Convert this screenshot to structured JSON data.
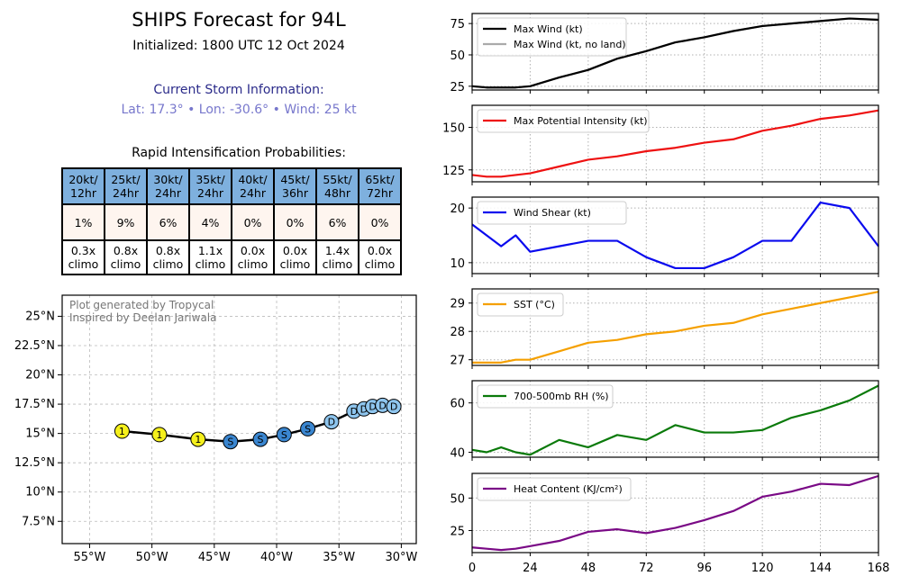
{
  "header": {
    "title": "SHIPS Forecast for 94L",
    "initialized": "Initialized: 1800 UTC 12 Oct 2024",
    "storm_heading": "Current Storm Information:",
    "storm_line": "Lat: 17.3°  • Lon: -30.6°  • Wind: 25 kt",
    "ri_heading": "Rapid Intensification Probabilities:"
  },
  "ri_table": {
    "thresholds": [
      [
        "20kt/",
        "12hr"
      ],
      [
        "25kt/",
        "24hr"
      ],
      [
        "30kt/",
        "24hr"
      ],
      [
        "35kt/",
        "24hr"
      ],
      [
        "40kt/",
        "24hr"
      ],
      [
        "45kt/",
        "36hr"
      ],
      [
        "55kt/",
        "48hr"
      ],
      [
        "65kt/",
        "72hr"
      ]
    ],
    "probabilities": [
      "1%",
      "9%",
      "6%",
      "4%",
      "0%",
      "0%",
      "6%",
      "0%"
    ],
    "climo": [
      [
        "0.3x",
        "climo"
      ],
      [
        "0.8x",
        "climo"
      ],
      [
        "0.8x",
        "climo"
      ],
      [
        "1.1x",
        "climo"
      ],
      [
        "0.0x",
        "climo"
      ],
      [
        "0.0x",
        "climo"
      ],
      [
        "1.4x",
        "climo"
      ],
      [
        "0.0x",
        "climo"
      ]
    ]
  },
  "map": {
    "credit_line1": "Plot generated by Tropycal",
    "credit_line2": "Inspired by Deelan Jariwala",
    "lat_ticks": [
      25,
      22.5,
      20,
      17.5,
      15,
      12.5,
      10,
      7.5
    ],
    "lat_tick_labels": [
      "25°N",
      "22.5°N",
      "20°N",
      "17.5°N",
      "15°N",
      "12.5°N",
      "10°N",
      "7.5°N"
    ],
    "lon_ticks": [
      -55,
      -50,
      -45,
      -40,
      -35,
      -30
    ],
    "lon_tick_labels": [
      "55°W",
      "50°W",
      "45°W",
      "40°W",
      "35°W",
      "30°W"
    ],
    "lon_range": [
      -57.2,
      -28.8
    ],
    "lat_range": [
      5.6,
      26.8
    ],
    "track_color": "#000000",
    "category_colors": {
      "D": "#8ec5ee",
      "S": "#3a86d0",
      "1": "#f5f01c"
    },
    "track": [
      {
        "lon": -30.6,
        "lat": 17.3,
        "cat": "D"
      },
      {
        "lon": -31.5,
        "lat": 17.4,
        "cat": "D"
      },
      {
        "lon": -32.3,
        "lat": 17.3,
        "cat": "D"
      },
      {
        "lon": -33.0,
        "lat": 17.1,
        "cat": "D"
      },
      {
        "lon": -33.8,
        "lat": 16.9,
        "cat": "D"
      },
      {
        "lon": -35.6,
        "lat": 16.0,
        "cat": "D"
      },
      {
        "lon": -37.5,
        "lat": 15.4,
        "cat": "S"
      },
      {
        "lon": -39.4,
        "lat": 14.9,
        "cat": "S"
      },
      {
        "lon": -41.3,
        "lat": 14.5,
        "cat": "S"
      },
      {
        "lon": -43.7,
        "lat": 14.3,
        "cat": "S"
      },
      {
        "lon": -46.3,
        "lat": 14.5,
        "cat": "1"
      },
      {
        "lon": -49.4,
        "lat": 14.9,
        "cat": "1"
      },
      {
        "lon": -52.4,
        "lat": 15.2,
        "cat": "1"
      }
    ]
  },
  "chart_data": [
    {
      "type": "line",
      "x": [
        0,
        6,
        12,
        18,
        24,
        36,
        48,
        60,
        72,
        84,
        96,
        108,
        120,
        132,
        144,
        156,
        168
      ],
      "series": [
        {
          "name": "Max Wind (kt)",
          "color": "#000000",
          "values": [
            25,
            24,
            24,
            24,
            25,
            32,
            38,
            47,
            53,
            60,
            64,
            69,
            73,
            75,
            77,
            79,
            78
          ]
        },
        {
          "name": "Max Wind (kt, no land)",
          "color": "#aaaaaa",
          "values": [
            25,
            24,
            24,
            24,
            25,
            32,
            38,
            47,
            53,
            60,
            64,
            69,
            73,
            75,
            77,
            79,
            78
          ]
        }
      ],
      "ylim": [
        22,
        83
      ],
      "yticks": [
        25,
        50,
        75
      ],
      "xlim": [
        0,
        168
      ],
      "legend": "top-left",
      "grid": true
    },
    {
      "type": "line",
      "x": [
        0,
        6,
        12,
        18,
        24,
        36,
        48,
        60,
        72,
        84,
        96,
        108,
        120,
        132,
        144,
        156,
        168
      ],
      "series": [
        {
          "name": "Max Potential Intensity (kt)",
          "color": "#ee1111",
          "values": [
            122,
            121,
            121,
            122,
            123,
            127,
            131,
            133,
            136,
            138,
            141,
            143,
            148,
            151,
            155,
            157,
            160
          ]
        }
      ],
      "ylim": [
        118,
        163
      ],
      "yticks": [
        125,
        150
      ],
      "xlim": [
        0,
        168
      ],
      "legend": "top-left",
      "grid": true
    },
    {
      "type": "line",
      "x": [
        0,
        6,
        12,
        18,
        24,
        36,
        48,
        60,
        72,
        84,
        96,
        108,
        120,
        132,
        144,
        156,
        168
      ],
      "series": [
        {
          "name": "Wind Shear (kt)",
          "color": "#0a0aee",
          "values": [
            17,
            15,
            13,
            15,
            12,
            13,
            14,
            14,
            11,
            9,
            9,
            11,
            14,
            14,
            21,
            20,
            13
          ]
        }
      ],
      "ylim": [
        8,
        22
      ],
      "yticks": [
        10,
        20
      ],
      "xlim": [
        0,
        168
      ],
      "legend": "top-left",
      "grid": true
    },
    {
      "type": "line",
      "x": [
        0,
        6,
        12,
        18,
        24,
        36,
        48,
        60,
        72,
        84,
        96,
        108,
        120,
        132,
        144,
        156,
        168
      ],
      "series": [
        {
          "name": "SST (°C)",
          "color": "#f5a000",
          "values": [
            26.9,
            26.9,
            26.9,
            27.0,
            27.0,
            27.3,
            27.6,
            27.7,
            27.9,
            28.0,
            28.2,
            28.3,
            28.6,
            28.8,
            29.0,
            29.2,
            29.4
          ]
        }
      ],
      "ylim": [
        26.8,
        29.5
      ],
      "yticks": [
        27,
        28,
        29
      ],
      "xlim": [
        0,
        168
      ],
      "legend": "top-left",
      "grid": true
    },
    {
      "type": "line",
      "x": [
        0,
        6,
        12,
        18,
        24,
        36,
        48,
        60,
        72,
        84,
        96,
        108,
        120,
        132,
        144,
        156,
        168
      ],
      "series": [
        {
          "name": "700-500mb RH (%)",
          "color": "#0a7a0a",
          "values": [
            41,
            40,
            42,
            40,
            39,
            45,
            42,
            47,
            45,
            51,
            48,
            48,
            49,
            54,
            57,
            61,
            67
          ]
        }
      ],
      "ylim": [
        38,
        69
      ],
      "yticks": [
        40,
        60
      ],
      "xlim": [
        0,
        168
      ],
      "legend": "top-left",
      "grid": true
    },
    {
      "type": "line",
      "x": [
        0,
        6,
        12,
        18,
        24,
        36,
        48,
        60,
        72,
        84,
        96,
        108,
        120,
        132,
        144,
        156,
        168
      ],
      "series": [
        {
          "name": "Heat Content (KJ/cm²)",
          "color": "#7a0a86",
          "values": [
            12,
            11,
            10,
            11,
            13,
            17,
            24,
            26,
            23,
            27,
            33,
            40,
            51,
            55,
            61,
            60,
            67
          ]
        }
      ],
      "ylim": [
        8,
        69
      ],
      "yticks": [
        25,
        50
      ],
      "xlim": [
        0,
        168
      ],
      "xticks": [
        0,
        24,
        48,
        72,
        96,
        120,
        144,
        168
      ],
      "xtick_labels": [
        "0",
        "24",
        "48",
        "72",
        "96",
        "120",
        "144",
        "168"
      ],
      "legend": "top-left",
      "grid": true
    }
  ]
}
